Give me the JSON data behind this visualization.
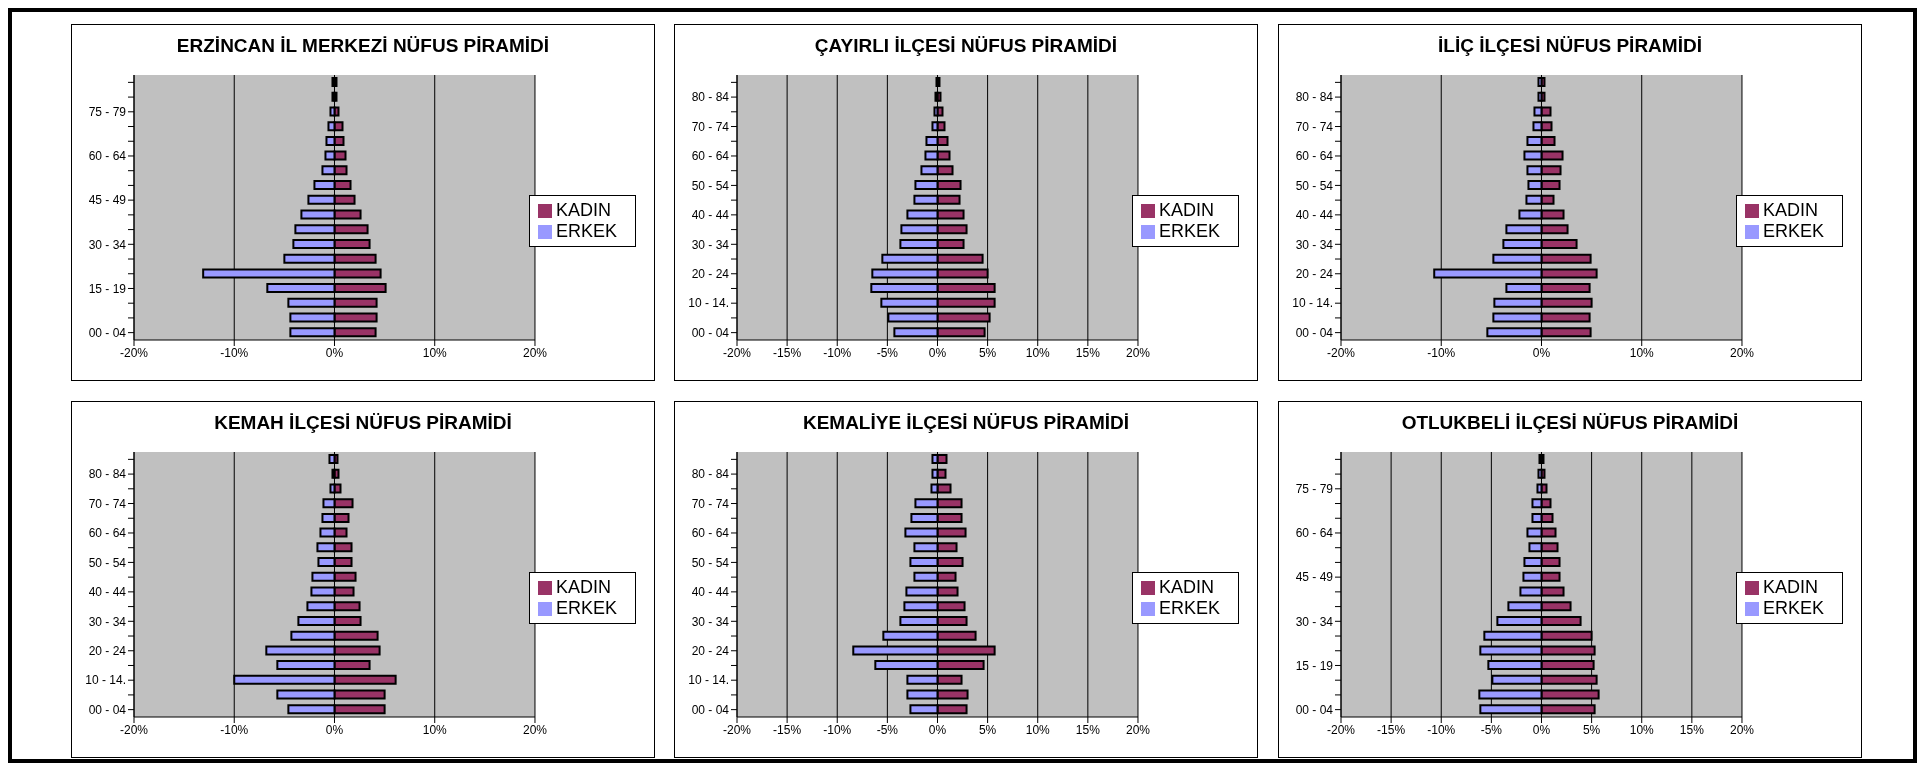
{
  "chart_data": [
    {
      "type": "bar",
      "orientation": "horizontal",
      "stacked": true,
      "title": "ERZİNCAN İL MERKEZİ NÜFUS PİRAMİDİ",
      "categories": [
        null,
        null,
        "75 - 79",
        null,
        null,
        "60 - 64",
        null,
        null,
        "45 - 49",
        null,
        null,
        "30 - 34",
        null,
        null,
        "15 - 19",
        null,
        null,
        "00 - 04"
      ],
      "series": [
        {
          "name": "KADIN",
          "color": "#993366",
          "values": [
            0.2,
            0.2,
            0.4,
            0.8,
            0.9,
            1.1,
            1.2,
            1.6,
            2.0,
            2.6,
            3.3,
            3.5,
            4.1,
            4.6,
            5.1,
            4.2,
            4.2,
            4.1
          ]
        },
        {
          "name": "ERKEK",
          "color": "#9999ff",
          "values": [
            -0.2,
            -0.2,
            -0.4,
            -0.6,
            -0.8,
            -0.9,
            -1.2,
            -2.0,
            -2.6,
            -3.3,
            -3.9,
            -4.1,
            -5.0,
            -13.1,
            -6.7,
            -4.6,
            -4.4,
            -4.4
          ]
        }
      ],
      "xlim": [
        -20,
        20
      ],
      "xticks": [
        {
          "value": -20,
          "label": "-20%"
        },
        {
          "value": -10,
          "label": "-10%"
        },
        {
          "value": 0,
          "label": "0%"
        },
        {
          "value": 10,
          "label": "10%"
        },
        {
          "value": 20,
          "label": "20%"
        }
      ],
      "grid": "x",
      "legend": "right"
    },
    {
      "type": "bar",
      "orientation": "horizontal",
      "stacked": true,
      "title": "ÇAYIRLI İLÇESİ NÜFUS PİRAMİDİ",
      "categories": [
        null,
        "80 - 84",
        null,
        "70 - 74",
        null,
        "60 - 64",
        null,
        "50 - 54",
        null,
        "40 - 44",
        null,
        "30 - 34",
        null,
        "20 - 24",
        null,
        "10 - 14.",
        null,
        "00 - 04"
      ],
      "series": [
        {
          "name": "KADIN",
          "color": "#993366",
          "values": [
            0.2,
            0.3,
            0.5,
            0.7,
            1.0,
            1.2,
            1.5,
            2.3,
            2.2,
            2.6,
            2.9,
            2.6,
            4.5,
            5.0,
            5.7,
            5.7,
            5.2,
            4.7
          ]
        },
        {
          "name": "ERKEK",
          "color": "#9999ff",
          "values": [
            -0.1,
            -0.2,
            -0.3,
            -0.5,
            -1.1,
            -1.2,
            -1.6,
            -2.2,
            -2.3,
            -3.0,
            -3.6,
            -3.7,
            -5.5,
            -6.5,
            -6.6,
            -5.6,
            -4.9,
            -4.3
          ]
        }
      ],
      "xlim": [
        -20,
        20
      ],
      "xticks": [
        {
          "value": -20,
          "label": "-20%"
        },
        {
          "value": -15,
          "label": "-15%"
        },
        {
          "value": -10,
          "label": "-10%"
        },
        {
          "value": -5,
          "label": "-5%"
        },
        {
          "value": 0,
          "label": "0%"
        },
        {
          "value": 5,
          "label": "5%"
        },
        {
          "value": 10,
          "label": "10%"
        },
        {
          "value": 15,
          "label": "15%"
        },
        {
          "value": 20,
          "label": "20%"
        }
      ],
      "grid": "x",
      "legend": "right"
    },
    {
      "type": "bar",
      "orientation": "horizontal",
      "stacked": true,
      "title": "İLİÇ İLÇESİ NÜFUS PİRAMİDİ",
      "categories": [
        null,
        "80 - 84",
        null,
        "70 - 74",
        null,
        "60 - 64",
        null,
        "50 - 54",
        null,
        "40 - 44",
        null,
        "30 - 34",
        null,
        "20 - 24",
        null,
        "10 - 14.",
        null,
        "00 - 04"
      ],
      "series": [
        {
          "name": "KADIN",
          "color": "#993366",
          "values": [
            0.3,
            0.3,
            0.9,
            1.0,
            1.3,
            2.1,
            1.9,
            1.8,
            1.2,
            2.2,
            2.6,
            3.5,
            4.9,
            5.5,
            4.8,
            5.0,
            4.8,
            4.9
          ]
        },
        {
          "name": "ERKEK",
          "color": "#9999ff",
          "values": [
            -0.3,
            -0.3,
            -0.7,
            -0.8,
            -1.4,
            -1.7,
            -1.4,
            -1.3,
            -1.5,
            -2.2,
            -3.5,
            -3.8,
            -4.8,
            -10.7,
            -3.5,
            -4.7,
            -4.8,
            -5.4
          ]
        }
      ],
      "xlim": [
        -20,
        20
      ],
      "xticks": [
        {
          "value": -20,
          "label": "-20%"
        },
        {
          "value": -10,
          "label": "-10%"
        },
        {
          "value": 0,
          "label": "0%"
        },
        {
          "value": 10,
          "label": "10%"
        },
        {
          "value": 20,
          "label": "20%"
        }
      ],
      "grid": "x",
      "legend": "right"
    },
    {
      "type": "bar",
      "orientation": "horizontal",
      "stacked": true,
      "title": "KEMAH İLÇESİ NÜFUS PİRAMİDİ",
      "categories": [
        null,
        "80 - 84",
        null,
        "70 - 74",
        null,
        "60 - 64",
        null,
        "50 - 54",
        null,
        "40 - 44",
        null,
        "30 - 34",
        null,
        "20 - 24",
        null,
        "10 - 14.",
        null,
        "00 - 04"
      ],
      "series": [
        {
          "name": "KADIN",
          "color": "#993366",
          "values": [
            0.3,
            0.4,
            0.6,
            1.8,
            1.4,
            1.2,
            1.7,
            1.7,
            2.1,
            1.9,
            2.5,
            2.6,
            4.3,
            4.5,
            3.5,
            6.1,
            5.0,
            5.0
          ]
        },
        {
          "name": "ERKEK",
          "color": "#9999ff",
          "values": [
            -0.5,
            -0.2,
            -0.4,
            -1.1,
            -1.2,
            -1.4,
            -1.7,
            -1.6,
            -2.2,
            -2.3,
            -2.7,
            -3.6,
            -4.3,
            -6.8,
            -5.7,
            -10.0,
            -5.7,
            -4.6
          ]
        }
      ],
      "xlim": [
        -20,
        20
      ],
      "xticks": [
        {
          "value": -20,
          "label": "-20%"
        },
        {
          "value": -10,
          "label": "-10%"
        },
        {
          "value": 0,
          "label": "0%"
        },
        {
          "value": 10,
          "label": "10%"
        },
        {
          "value": 20,
          "label": "20%"
        }
      ],
      "grid": "x",
      "legend": "right"
    },
    {
      "type": "bar",
      "orientation": "horizontal",
      "stacked": true,
      "title": "KEMALİYE İLÇESİ NÜFUS PİRAMİDİ",
      "categories": [
        null,
        "80 - 84",
        null,
        "70 - 74",
        null,
        "60 - 64",
        null,
        "50 - 54",
        null,
        "40 - 44",
        null,
        "30 - 34",
        null,
        "20 - 24",
        null,
        "10 - 14.",
        null,
        "00 - 04"
      ],
      "series": [
        {
          "name": "KADIN",
          "color": "#993366",
          "values": [
            0.9,
            0.8,
            1.3,
            2.4,
            2.4,
            2.8,
            1.9,
            2.5,
            1.8,
            2.0,
            2.7,
            2.9,
            3.8,
            5.7,
            4.6,
            2.4,
            3.0,
            2.9
          ]
        },
        {
          "name": "ERKEK",
          "color": "#9999ff",
          "values": [
            -0.5,
            -0.5,
            -0.6,
            -2.2,
            -2.6,
            -3.2,
            -2.3,
            -2.7,
            -2.3,
            -3.1,
            -3.3,
            -3.7,
            -5.4,
            -8.4,
            -6.2,
            -3.0,
            -3.0,
            -2.7
          ]
        }
      ],
      "xlim": [
        -20,
        20
      ],
      "xticks": [
        {
          "value": -20,
          "label": "-20%"
        },
        {
          "value": -15,
          "label": "-15%"
        },
        {
          "value": -10,
          "label": "-10%"
        },
        {
          "value": -5,
          "label": "-5%"
        },
        {
          "value": 0,
          "label": "0%"
        },
        {
          "value": 5,
          "label": "5%"
        },
        {
          "value": 10,
          "label": "10%"
        },
        {
          "value": 15,
          "label": "15%"
        },
        {
          "value": 20,
          "label": "20%"
        }
      ],
      "grid": "x",
      "legend": "right"
    },
    {
      "type": "bar",
      "orientation": "horizontal",
      "stacked": true,
      "title": "OTLUKBELİ İLÇESİ NÜFUS PİRAMİDİ",
      "categories": [
        null,
        null,
        "75 - 79",
        null,
        null,
        "60 - 64",
        null,
        null,
        "45 - 49",
        null,
        null,
        "30 - 34",
        null,
        null,
        "15 - 19",
        null,
        null,
        "00 - 04"
      ],
      "series": [
        {
          "name": "KADIN",
          "color": "#993366",
          "values": [
            0.2,
            0.3,
            0.5,
            0.9,
            1.1,
            1.4,
            1.6,
            1.8,
            1.8,
            2.2,
            2.9,
            3.9,
            5.0,
            5.3,
            5.2,
            5.5,
            5.7,
            5.3
          ]
        },
        {
          "name": "ERKEK",
          "color": "#9999ff",
          "values": [
            -0.2,
            -0.3,
            -0.4,
            -0.9,
            -0.9,
            -1.4,
            -1.2,
            -1.7,
            -1.8,
            -2.1,
            -3.3,
            -4.4,
            -5.7,
            -6.1,
            -5.3,
            -4.9,
            -6.2,
            -6.1
          ]
        }
      ],
      "xlim": [
        -20,
        20
      ],
      "xticks": [
        {
          "value": -20,
          "label": "-20%"
        },
        {
          "value": -15,
          "label": "-15%"
        },
        {
          "value": -10,
          "label": "-10%"
        },
        {
          "value": -5,
          "label": "-5%"
        },
        {
          "value": 0,
          "label": "0%"
        },
        {
          "value": 5,
          "label": "5%"
        },
        {
          "value": 10,
          "label": "10%"
        },
        {
          "value": 15,
          "label": "15%"
        },
        {
          "value": 20,
          "label": "20%"
        }
      ],
      "grid": "x",
      "legend": "right"
    }
  ]
}
